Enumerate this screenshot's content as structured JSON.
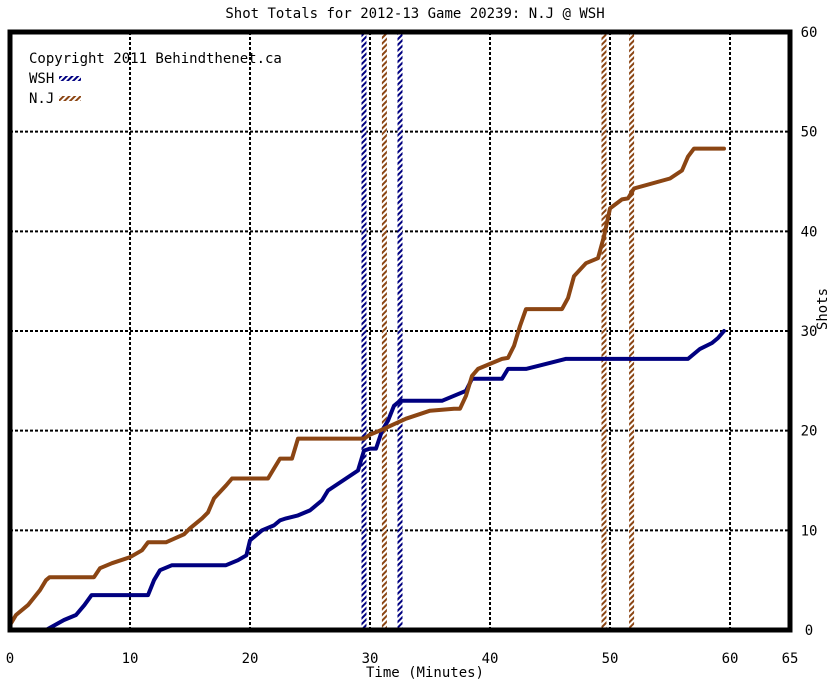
{
  "chart_data": {
    "type": "line",
    "title": "Shot Totals for 2012-13 Game 20239: N.J @ WSH",
    "xlabel": "Time (Minutes)",
    "ylabel": "Shots",
    "xlim": [
      0,
      65
    ],
    "ylim": [
      0,
      60
    ],
    "xticks": [
      0,
      10,
      20,
      30,
      40,
      50,
      60,
      65
    ],
    "yticks": [
      0,
      10,
      20,
      30,
      40,
      50,
      60
    ],
    "grid": true,
    "legend_position": "top-left",
    "copyright": "Copyright 2011 Behindthenet.ca",
    "series": [
      {
        "name": "WSH",
        "color": "#000080",
        "points": [
          [
            0,
            0
          ],
          [
            3,
            0
          ],
          [
            4.5,
            1
          ],
          [
            5.5,
            1.5
          ],
          [
            6.2,
            2.5
          ],
          [
            6.8,
            3.5
          ],
          [
            11.5,
            3.5
          ],
          [
            12,
            5
          ],
          [
            12.5,
            6
          ],
          [
            13.5,
            6.5
          ],
          [
            18,
            6.5
          ],
          [
            19,
            7
          ],
          [
            19.7,
            7.5
          ],
          [
            20,
            9
          ],
          [
            21,
            10
          ],
          [
            22,
            10.5
          ],
          [
            22.5,
            11
          ],
          [
            23,
            11.2
          ],
          [
            24,
            11.5
          ],
          [
            25,
            12
          ],
          [
            25.5,
            12.5
          ],
          [
            26,
            13
          ],
          [
            26.5,
            14
          ],
          [
            27.5,
            14.8
          ],
          [
            29,
            16
          ],
          [
            29.5,
            18
          ],
          [
            30,
            18.2
          ],
          [
            30.5,
            18.2
          ],
          [
            31,
            20
          ],
          [
            31.5,
            21
          ],
          [
            32,
            22.5
          ],
          [
            32.5,
            23
          ],
          [
            36,
            23
          ],
          [
            37,
            23.5
          ],
          [
            38,
            24
          ],
          [
            38.5,
            25.2
          ],
          [
            41,
            25.2
          ],
          [
            41.5,
            26.2
          ],
          [
            43,
            26.2
          ],
          [
            44,
            26.5
          ],
          [
            46.3,
            27.2
          ],
          [
            56.5,
            27.2
          ],
          [
            57.5,
            28.2
          ],
          [
            58.5,
            28.8
          ],
          [
            59,
            29.3
          ],
          [
            59.5,
            30
          ]
        ]
      },
      {
        "name": "N.J",
        "color": "#8b4513",
        "points": [
          [
            0,
            0.5
          ],
          [
            0.5,
            1.5
          ],
          [
            1.5,
            2.5
          ],
          [
            2.5,
            4
          ],
          [
            3,
            5
          ],
          [
            3.3,
            5.3
          ],
          [
            7,
            5.3
          ],
          [
            7.5,
            6.2
          ],
          [
            8.5,
            6.7
          ],
          [
            10,
            7.3
          ],
          [
            11,
            8
          ],
          [
            11.5,
            8.8
          ],
          [
            13,
            8.8
          ],
          [
            14.5,
            9.6
          ],
          [
            15,
            10.2
          ],
          [
            16,
            11.2
          ],
          [
            16.5,
            11.8
          ],
          [
            17,
            13.2
          ],
          [
            18,
            14.5
          ],
          [
            18.5,
            15.2
          ],
          [
            21.5,
            15.2
          ],
          [
            22,
            16.2
          ],
          [
            22.5,
            17.2
          ],
          [
            23.5,
            17.2
          ],
          [
            24,
            19.2
          ],
          [
            29.5,
            19.2
          ],
          [
            30,
            19.6
          ],
          [
            31,
            20.1
          ],
          [
            33,
            21.2
          ],
          [
            35,
            22
          ],
          [
            37,
            22.2
          ],
          [
            37.5,
            22.2
          ],
          [
            38,
            23.5
          ],
          [
            38.5,
            25.5
          ],
          [
            39,
            26.2
          ],
          [
            40,
            26.7
          ],
          [
            41,
            27.2
          ],
          [
            41.5,
            27.3
          ],
          [
            42,
            28.5
          ],
          [
            42.5,
            30.5
          ],
          [
            43,
            32.2
          ],
          [
            46,
            32.2
          ],
          [
            46.5,
            33.3
          ],
          [
            47,
            35.5
          ],
          [
            48,
            36.8
          ],
          [
            49,
            37.3
          ],
          [
            49.5,
            39.5
          ],
          [
            50,
            42.3
          ],
          [
            51,
            43.2
          ],
          [
            51.5,
            43.3
          ],
          [
            52,
            44.3
          ],
          [
            55,
            45.3
          ],
          [
            56,
            46.1
          ],
          [
            56.5,
            47.5
          ],
          [
            57,
            48.3
          ],
          [
            59.5,
            48.3
          ]
        ]
      }
    ],
    "events": {
      "WSH": [
        29.5,
        32.5
      ],
      "N.J": [
        31.2,
        49.5,
        51.8
      ]
    }
  }
}
